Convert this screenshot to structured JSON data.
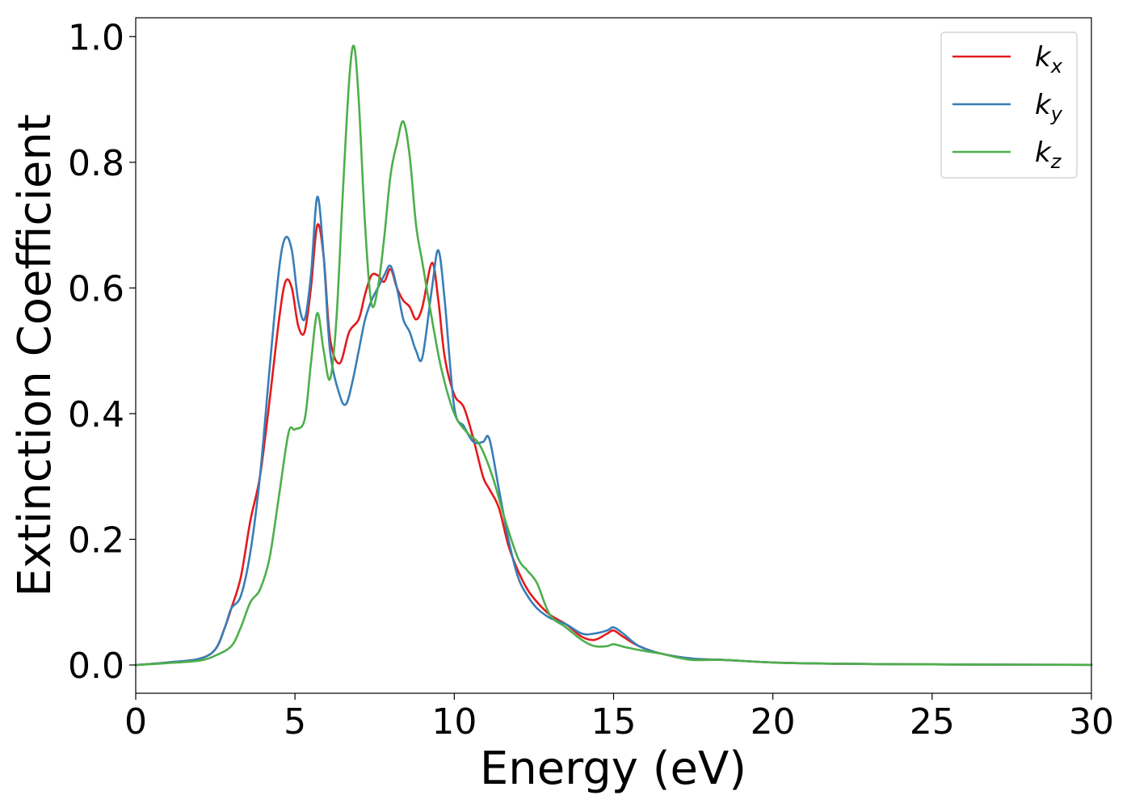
{
  "chart_data": {
    "type": "line",
    "xlabel": "Energy (eV)",
    "ylabel": "Extinction Coefficient",
    "xlim": [
      0,
      30
    ],
    "ylim": [
      -0.045,
      1.03
    ],
    "xticks": [
      0,
      5,
      10,
      15,
      20,
      25,
      30
    ],
    "yticks": [
      0.0,
      0.2,
      0.4,
      0.6,
      0.8,
      1.0
    ],
    "xtick_labels": [
      "0",
      "5",
      "10",
      "15",
      "20",
      "25",
      "30"
    ],
    "ytick_labels": [
      "0.0",
      "0.2",
      "0.4",
      "0.6",
      "0.8",
      "1.0"
    ],
    "grid": false,
    "legend_position": "top-right",
    "series": [
      {
        "name": "k_x",
        "label_base": "k",
        "label_sub": "x",
        "color": "#e41a1c",
        "x": [
          0,
          1,
          2,
          2.5,
          2.8,
          3.0,
          3.3,
          3.6,
          3.9,
          4.2,
          4.5,
          4.7,
          4.9,
          5.1,
          5.3,
          5.5,
          5.7,
          5.9,
          6.1,
          6.4,
          6.7,
          7.0,
          7.2,
          7.4,
          7.6,
          7.8,
          8.0,
          8.2,
          8.4,
          8.6,
          8.8,
          9.0,
          9.3,
          9.5,
          9.7,
          10.0,
          10.3,
          10.6,
          10.9,
          11.1,
          11.4,
          11.7,
          12.0,
          12.3,
          12.6,
          13.0,
          13.5,
          14.0,
          14.4,
          14.8,
          15.0,
          15.3,
          15.8,
          16.5,
          17.5,
          18.5,
          20,
          22,
          25,
          28,
          30
        ],
        "y": [
          0.0,
          0.004,
          0.01,
          0.025,
          0.06,
          0.09,
          0.14,
          0.23,
          0.3,
          0.42,
          0.55,
          0.61,
          0.6,
          0.54,
          0.53,
          0.6,
          0.7,
          0.65,
          0.52,
          0.48,
          0.53,
          0.55,
          0.59,
          0.62,
          0.62,
          0.61,
          0.63,
          0.6,
          0.58,
          0.57,
          0.55,
          0.57,
          0.64,
          0.58,
          0.49,
          0.43,
          0.41,
          0.36,
          0.3,
          0.28,
          0.25,
          0.19,
          0.15,
          0.12,
          0.1,
          0.08,
          0.065,
          0.045,
          0.04,
          0.05,
          0.055,
          0.045,
          0.03,
          0.018,
          0.01,
          0.008,
          0.004,
          0.002,
          0.001,
          0.0005,
          0.0003
        ]
      },
      {
        "name": "k_y",
        "label_base": "k",
        "label_sub": "y",
        "color": "#377eb8",
        "x": [
          0,
          1,
          2,
          2.5,
          2.8,
          3.0,
          3.3,
          3.6,
          3.9,
          4.2,
          4.5,
          4.7,
          4.9,
          5.1,
          5.3,
          5.5,
          5.7,
          5.9,
          6.1,
          6.4,
          6.6,
          6.8,
          7.0,
          7.2,
          7.4,
          7.6,
          7.8,
          8.0,
          8.2,
          8.4,
          8.6,
          8.8,
          9.0,
          9.3,
          9.5,
          9.7,
          10.0,
          10.3,
          10.6,
          10.9,
          11.1,
          11.4,
          11.7,
          12.0,
          12.3,
          12.6,
          13.0,
          13.5,
          14.0,
          14.4,
          14.8,
          15.0,
          15.3,
          15.8,
          16.5,
          17.5,
          18.5,
          20,
          22,
          25,
          28,
          30
        ],
        "y": [
          0.0,
          0.004,
          0.01,
          0.025,
          0.06,
          0.09,
          0.11,
          0.18,
          0.3,
          0.47,
          0.63,
          0.68,
          0.66,
          0.58,
          0.55,
          0.62,
          0.745,
          0.65,
          0.5,
          0.43,
          0.415,
          0.45,
          0.5,
          0.55,
          0.58,
          0.6,
          0.62,
          0.635,
          0.6,
          0.55,
          0.53,
          0.5,
          0.49,
          0.6,
          0.66,
          0.58,
          0.41,
          0.38,
          0.355,
          0.355,
          0.36,
          0.28,
          0.2,
          0.14,
          0.11,
          0.09,
          0.075,
          0.065,
          0.05,
          0.05,
          0.055,
          0.06,
          0.05,
          0.03,
          0.018,
          0.01,
          0.008,
          0.004,
          0.002,
          0.001,
          0.0005,
          0.0003
        ]
      },
      {
        "name": "k_z",
        "label_base": "k",
        "label_sub": "z",
        "color": "#4daf4a",
        "x": [
          0,
          1,
          2,
          2.5,
          3.0,
          3.3,
          3.6,
          3.9,
          4.2,
          4.5,
          4.8,
          5.0,
          5.3,
          5.5,
          5.7,
          5.9,
          6.1,
          6.3,
          6.5,
          6.7,
          6.85,
          7.0,
          7.2,
          7.4,
          7.6,
          7.8,
          8.0,
          8.2,
          8.4,
          8.6,
          8.8,
          9.0,
          9.3,
          9.6,
          10.0,
          10.4,
          10.8,
          11.2,
          11.6,
          12.0,
          12.3,
          12.6,
          13.0,
          13.5,
          14.0,
          14.4,
          14.8,
          15.0,
          15.4,
          16.0,
          16.5,
          17.0,
          17.5,
          18.5,
          20,
          22,
          25,
          28,
          30
        ],
        "y": [
          0.0,
          0.003,
          0.007,
          0.015,
          0.03,
          0.06,
          0.1,
          0.12,
          0.17,
          0.27,
          0.37,
          0.375,
          0.39,
          0.48,
          0.56,
          0.5,
          0.455,
          0.55,
          0.75,
          0.93,
          0.985,
          0.9,
          0.7,
          0.575,
          0.6,
          0.68,
          0.78,
          0.83,
          0.865,
          0.81,
          0.7,
          0.64,
          0.55,
          0.47,
          0.4,
          0.37,
          0.35,
          0.3,
          0.23,
          0.17,
          0.15,
          0.13,
          0.08,
          0.06,
          0.04,
          0.03,
          0.03,
          0.033,
          0.028,
          0.022,
          0.018,
          0.012,
          0.008,
          0.008,
          0.004,
          0.002,
          0.001,
          0.0005,
          0.0003
        ]
      }
    ]
  }
}
